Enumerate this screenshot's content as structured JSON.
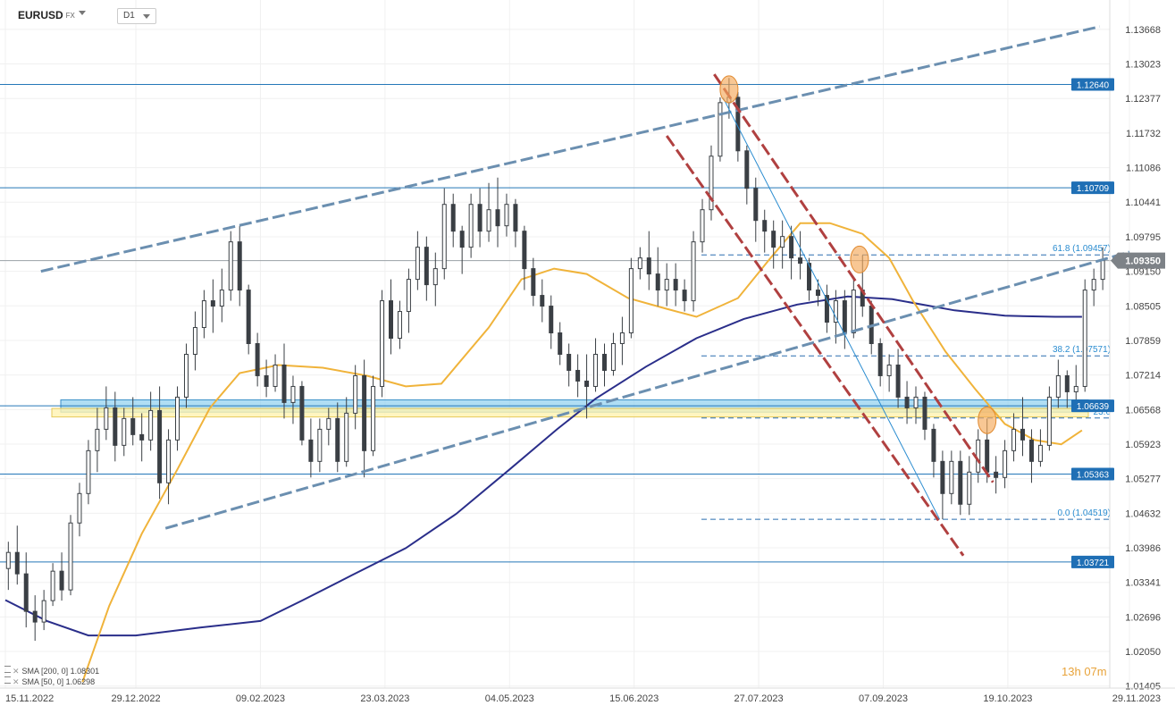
{
  "header": {
    "symbol": "EURUSD",
    "symbol_tag": "FX",
    "timeframe": "D1"
  },
  "legend": [
    {
      "label": "SMA [200, 0]",
      "value": "1.08301",
      "color": "#2a2e8a"
    },
    {
      "label": "SMA [50, 0]",
      "value": "1.06298",
      "color": "#f0b33a"
    }
  ],
  "countdown": {
    "hours": "13h",
    "minutes": "07m"
  },
  "chart_data": {
    "type": "candlestick",
    "instrument": "EURUSD",
    "timeframe": "D1",
    "ylim": [
      1.014,
      1.142
    ],
    "x_range": [
      "2022-11-15",
      "2023-11-29"
    ],
    "y_ticks": [
      "1.13668",
      "1.13023",
      "1.12377",
      "1.11732",
      "1.11086",
      "1.10441",
      "1.09795",
      "1.09150",
      "1.08505",
      "1.07859",
      "1.07214",
      "1.06568",
      "1.05923",
      "1.05277",
      "1.04632",
      "1.03986",
      "1.03341",
      "1.02696",
      "1.02050",
      "1.01405"
    ],
    "x_ticks": [
      {
        "label": "15.11.2022",
        "date": "2022-11-15"
      },
      {
        "label": "29.12.2022",
        "date": "2022-12-29"
      },
      {
        "label": "09.02.2023",
        "date": "2023-02-09"
      },
      {
        "label": "23.03.2023",
        "date": "2023-03-23"
      },
      {
        "label": "04.05.2023",
        "date": "2023-05-04"
      },
      {
        "label": "15.06.2023",
        "date": "2023-06-15"
      },
      {
        "label": "27.07.2023",
        "date": "2023-07-27"
      },
      {
        "label": "07.09.2023",
        "date": "2023-09-07"
      },
      {
        "label": "19.10.2023",
        "date": "2023-10-19"
      },
      {
        "label": "29.11.2023",
        "date": "2023-11-29"
      }
    ],
    "current_price": {
      "label": "1.09350",
      "value": 1.0935
    },
    "horizontal_levels": [
      {
        "label": "1.12640",
        "value": 1.1264
      },
      {
        "label": "1.10709",
        "value": 1.10709
      },
      {
        "label": "1.06639",
        "value": 1.06639
      },
      {
        "label": "1.05363",
        "value": 1.05363
      },
      {
        "label": "1.03721",
        "value": 1.03721
      }
    ],
    "fibonacci": [
      {
        "label": "61.8 (1.09457)",
        "value": 1.09457
      },
      {
        "label": "38.2 (1.07571)",
        "value": 1.07571
      },
      {
        "label": "23.6",
        "value": 1.0641
      },
      {
        "label": "0.0 (1.04519)",
        "value": 1.04519
      }
    ],
    "zones": [
      {
        "name": "support-zone-blue",
        "from": 1.0652,
        "to": 1.0675,
        "color": "#8fd0ef"
      },
      {
        "name": "support-zone-yellow",
        "from": 1.0643,
        "to": 1.0659,
        "color": "#fff3b0"
      }
    ],
    "trendlines": [
      {
        "name": "upper-channel",
        "from": [
          "2022-11-27",
          1.0915
        ],
        "to": [
          "2023-11-19",
          1.1372
        ],
        "color": "#6b8fb0",
        "style": "dashed"
      },
      {
        "name": "lower-channel",
        "from": [
          "2023-01-08",
          1.0435
        ],
        "to": [
          "2023-11-29",
          1.0951
        ],
        "color": "#6b8fb0",
        "style": "dashed"
      },
      {
        "name": "down-channel-top",
        "from": [
          "2023-07-12",
          1.1283
        ],
        "to": [
          "2023-10-14",
          1.0521
        ],
        "color": "#b04040",
        "style": "dashed"
      },
      {
        "name": "down-channel-bottom",
        "from": [
          "2023-06-26",
          1.1168
        ],
        "to": [
          "2023-10-04",
          1.0384
        ],
        "color": "#b04040",
        "style": "dashed"
      },
      {
        "name": "impulse-line",
        "from": [
          "2023-07-15",
          1.1239
        ],
        "to": [
          "2023-09-26",
          1.0452
        ],
        "color": "#2a8cd0",
        "style": "solid"
      }
    ],
    "highlights": [
      {
        "date": "2023-07-17",
        "value": 1.1255
      },
      {
        "date": "2023-08-30",
        "value": 1.0937
      },
      {
        "date": "2023-10-12",
        "value": 1.0637
      }
    ],
    "sma200": [
      [
        "2022-11-15",
        1.0301
      ],
      [
        "2022-11-29",
        1.0262
      ],
      [
        "2022-12-13",
        1.0235
      ],
      [
        "2022-12-29",
        1.0235
      ],
      [
        "2023-01-20",
        1.025
      ],
      [
        "2023-02-09",
        1.0262
      ],
      [
        "2023-02-23",
        1.03
      ],
      [
        "2023-03-12",
        1.0348
      ],
      [
        "2023-03-30",
        1.0398
      ],
      [
        "2023-04-16",
        1.0462
      ],
      [
        "2023-05-04",
        1.0545
      ],
      [
        "2023-05-20",
        1.062
      ],
      [
        "2023-06-02",
        1.0677
      ],
      [
        "2023-06-19",
        1.0737
      ],
      [
        "2023-07-06",
        1.079
      ],
      [
        "2023-07-22",
        1.0826
      ],
      [
        "2023-08-09",
        1.0853
      ],
      [
        "2023-08-26",
        1.0868
      ],
      [
        "2023-09-10",
        1.0863
      ],
      [
        "2023-10-01",
        1.0842
      ],
      [
        "2023-10-18",
        1.0832
      ],
      [
        "2023-11-04",
        1.083
      ],
      [
        "2023-11-13",
        1.083
      ]
    ],
    "sma50": [
      [
        "2022-12-11",
        1.0148
      ],
      [
        "2022-12-20",
        1.029
      ],
      [
        "2022-12-31",
        1.0425
      ],
      [
        "2023-01-12",
        1.0545
      ],
      [
        "2023-01-23",
        1.066
      ],
      [
        "2023-02-02",
        1.0725
      ],
      [
        "2023-02-15",
        1.074
      ],
      [
        "2023-03-02",
        1.0735
      ],
      [
        "2023-03-17",
        1.072
      ],
      [
        "2023-03-30",
        1.07
      ],
      [
        "2023-04-11",
        1.0705
      ],
      [
        "2023-04-27",
        1.081
      ],
      [
        "2023-05-08",
        1.09
      ],
      [
        "2023-05-19",
        1.092
      ],
      [
        "2023-05-30",
        1.091
      ],
      [
        "2023-06-13",
        1.0865
      ],
      [
        "2023-06-26",
        1.0845
      ],
      [
        "2023-07-06",
        1.083
      ],
      [
        "2023-07-20",
        1.0865
      ],
      [
        "2023-07-31",
        1.094
      ],
      [
        "2023-08-10",
        1.1005
      ],
      [
        "2023-08-20",
        1.1005
      ],
      [
        "2023-08-31",
        1.0985
      ],
      [
        "2023-09-09",
        1.094
      ],
      [
        "2023-09-17",
        1.086
      ],
      [
        "2023-09-28",
        1.0765
      ],
      [
        "2023-10-08",
        1.0695
      ],
      [
        "2023-10-18",
        1.063
      ],
      [
        "2023-10-28",
        1.06
      ],
      [
        "2023-11-06",
        1.0592
      ],
      [
        "2023-11-13",
        1.0618
      ]
    ],
    "candles": [
      [
        "2022-11-16",
        1.036,
        1.041,
        1.032,
        1.039
      ],
      [
        "2022-11-19",
        1.039,
        1.044,
        1.033,
        1.035
      ],
      [
        "2022-11-22",
        1.035,
        1.039,
        1.025,
        1.028
      ],
      [
        "2022-11-25",
        1.028,
        1.031,
        1.0225,
        1.026
      ],
      [
        "2022-11-28",
        1.026,
        1.032,
        1.0245,
        1.03
      ],
      [
        "2022-12-01",
        1.03,
        1.037,
        1.029,
        1.0355
      ],
      [
        "2022-12-04",
        1.0355,
        1.039,
        1.03,
        1.032
      ],
      [
        "2022-12-07",
        1.032,
        1.046,
        1.031,
        1.0445
      ],
      [
        "2022-12-10",
        1.0445,
        1.052,
        1.042,
        1.05
      ],
      [
        "2022-12-13",
        1.05,
        1.06,
        1.048,
        1.058
      ],
      [
        "2022-12-16",
        1.058,
        1.066,
        1.054,
        1.062
      ],
      [
        "2022-12-19",
        1.062,
        1.07,
        1.06,
        1.066
      ],
      [
        "2022-12-22",
        1.066,
        1.069,
        1.056,
        1.059
      ],
      [
        "2022-12-25",
        1.059,
        1.066,
        1.057,
        1.064
      ],
      [
        "2022-12-28",
        1.064,
        1.068,
        1.059,
        1.061
      ],
      [
        "2022-12-31",
        1.061,
        1.065,
        1.056,
        1.06
      ],
      [
        "2023-01-03",
        1.06,
        1.069,
        1.058,
        1.0655
      ],
      [
        "2023-01-06",
        1.0655,
        1.07,
        1.049,
        1.052
      ],
      [
        "2023-01-09",
        1.052,
        1.062,
        1.048,
        1.06
      ],
      [
        "2023-01-12",
        1.06,
        1.07,
        1.058,
        1.068
      ],
      [
        "2023-01-15",
        1.068,
        1.078,
        1.066,
        1.076
      ],
      [
        "2023-01-18",
        1.076,
        1.084,
        1.073,
        1.081
      ],
      [
        "2023-01-21",
        1.081,
        1.088,
        1.079,
        1.086
      ],
      [
        "2023-01-24",
        1.086,
        1.09,
        1.08,
        1.085
      ],
      [
        "2023-01-27",
        1.085,
        1.092,
        1.082,
        1.088
      ],
      [
        "2023-01-30",
        1.088,
        1.099,
        1.086,
        1.097
      ],
      [
        "2023-02-02",
        1.097,
        1.1,
        1.085,
        1.088
      ],
      [
        "2023-02-05",
        1.088,
        1.089,
        1.076,
        1.078
      ],
      [
        "2023-02-08",
        1.078,
        1.08,
        1.07,
        1.072
      ],
      [
        "2023-02-11",
        1.072,
        1.075,
        1.068,
        1.07
      ],
      [
        "2023-02-14",
        1.07,
        1.076,
        1.069,
        1.074
      ],
      [
        "2023-02-17",
        1.074,
        1.078,
        1.064,
        1.067
      ],
      [
        "2023-02-20",
        1.067,
        1.072,
        1.063,
        1.07
      ],
      [
        "2023-02-23",
        1.07,
        1.071,
        1.059,
        1.06
      ],
      [
        "2023-02-26",
        1.06,
        1.064,
        1.053,
        1.056
      ],
      [
        "2023-03-01",
        1.056,
        1.064,
        1.054,
        1.062
      ],
      [
        "2023-03-04",
        1.062,
        1.066,
        1.059,
        1.064
      ],
      [
        "2023-03-07",
        1.064,
        1.067,
        1.054,
        1.056
      ],
      [
        "2023-03-10",
        1.056,
        1.068,
        1.055,
        1.065
      ],
      [
        "2023-03-13",
        1.065,
        1.074,
        1.062,
        1.072
      ],
      [
        "2023-03-16",
        1.072,
        1.075,
        1.053,
        1.058
      ],
      [
        "2023-03-19",
        1.058,
        1.072,
        1.057,
        1.07
      ],
      [
        "2023-03-22",
        1.07,
        1.088,
        1.068,
        1.086
      ],
      [
        "2023-03-25",
        1.086,
        1.09,
        1.076,
        1.079
      ],
      [
        "2023-03-28",
        1.079,
        1.086,
        1.077,
        1.084
      ],
      [
        "2023-03-31",
        1.084,
        1.092,
        1.08,
        1.09
      ],
      [
        "2023-04-03",
        1.09,
        1.099,
        1.088,
        1.096
      ],
      [
        "2023-04-06",
        1.096,
        1.098,
        1.086,
        1.089
      ],
      [
        "2023-04-09",
        1.089,
        1.095,
        1.085,
        1.092
      ],
      [
        "2023-04-12",
        1.092,
        1.107,
        1.09,
        1.104
      ],
      [
        "2023-04-15",
        1.104,
        1.106,
        1.096,
        1.099
      ],
      [
        "2023-04-18",
        1.099,
        1.1,
        1.091,
        1.096
      ],
      [
        "2023-04-21",
        1.096,
        1.106,
        1.094,
        1.104
      ],
      [
        "2023-04-24",
        1.104,
        1.107,
        1.096,
        1.099
      ],
      [
        "2023-04-27",
        1.099,
        1.108,
        1.097,
        1.103
      ],
      [
        "2023-04-30",
        1.103,
        1.109,
        1.096,
        1.1
      ],
      [
        "2023-05-03",
        1.1,
        1.106,
        1.098,
        1.104
      ],
      [
        "2023-05-06",
        1.104,
        1.105,
        1.096,
        1.099
      ],
      [
        "2023-05-09",
        1.099,
        1.1,
        1.088,
        1.092
      ],
      [
        "2023-05-12",
        1.092,
        1.094,
        1.085,
        1.087
      ],
      [
        "2023-05-15",
        1.087,
        1.09,
        1.082,
        1.085
      ],
      [
        "2023-05-18",
        1.085,
        1.087,
        1.077,
        1.08
      ],
      [
        "2023-05-21",
        1.08,
        1.082,
        1.074,
        1.076
      ],
      [
        "2023-05-24",
        1.076,
        1.078,
        1.07,
        1.073
      ],
      [
        "2023-05-27",
        1.073,
        1.076,
        1.068,
        1.071
      ],
      [
        "2023-05-30",
        1.071,
        1.076,
        1.064,
        1.07
      ],
      [
        "2023-06-02",
        1.07,
        1.079,
        1.069,
        1.076
      ],
      [
        "2023-06-05",
        1.076,
        1.078,
        1.07,
        1.073
      ],
      [
        "2023-06-08",
        1.073,
        1.08,
        1.072,
        1.078
      ],
      [
        "2023-06-11",
        1.078,
        1.083,
        1.074,
        1.08
      ],
      [
        "2023-06-14",
        1.08,
        1.094,
        1.079,
        1.092
      ],
      [
        "2023-06-17",
        1.092,
        1.096,
        1.09,
        1.094
      ],
      [
        "2023-06-20",
        1.094,
        1.099,
        1.088,
        1.091
      ],
      [
        "2023-06-23",
        1.091,
        1.096,
        1.085,
        1.088
      ],
      [
        "2023-06-26",
        1.088,
        1.093,
        1.085,
        1.09
      ],
      [
        "2023-06-29",
        1.09,
        1.093,
        1.085,
        1.088
      ],
      [
        "2023-07-02",
        1.088,
        1.09,
        1.084,
        1.086
      ],
      [
        "2023-07-05",
        1.086,
        1.099,
        1.084,
        1.097
      ],
      [
        "2023-07-08",
        1.097,
        1.105,
        1.095,
        1.103
      ],
      [
        "2023-07-11",
        1.103,
        1.115,
        1.101,
        1.113
      ],
      [
        "2023-07-14",
        1.113,
        1.124,
        1.112,
        1.123
      ],
      [
        "2023-07-17",
        1.123,
        1.1276,
        1.12,
        1.124
      ],
      [
        "2023-07-20",
        1.124,
        1.125,
        1.112,
        1.114
      ],
      [
        "2023-07-23",
        1.114,
        1.115,
        1.104,
        1.107
      ],
      [
        "2023-07-26",
        1.107,
        1.109,
        1.097,
        1.101
      ],
      [
        "2023-07-29",
        1.101,
        1.103,
        1.095,
        1.099
      ],
      [
        "2023-08-01",
        1.099,
        1.101,
        1.092,
        1.096
      ],
      [
        "2023-08-04",
        1.096,
        1.101,
        1.092,
        1.098
      ],
      [
        "2023-08-07",
        1.098,
        1.1,
        1.09,
        1.094
      ],
      [
        "2023-08-10",
        1.094,
        1.099,
        1.09,
        1.093
      ],
      [
        "2023-08-13",
        1.093,
        1.094,
        1.086,
        1.088
      ],
      [
        "2023-08-16",
        1.088,
        1.09,
        1.085,
        1.087
      ],
      [
        "2023-08-19",
        1.087,
        1.089,
        1.08,
        1.082
      ],
      [
        "2023-08-22",
        1.082,
        1.088,
        1.078,
        1.086
      ],
      [
        "2023-08-25",
        1.086,
        1.088,
        1.077,
        1.08
      ],
      [
        "2023-08-28",
        1.08,
        1.09,
        1.079,
        1.088
      ],
      [
        "2023-08-31",
        1.088,
        1.0945,
        1.083,
        1.085
      ],
      [
        "2023-09-03",
        1.085,
        1.086,
        1.076,
        1.078
      ],
      [
        "2023-09-06",
        1.078,
        1.079,
        1.07,
        1.072
      ],
      [
        "2023-09-09",
        1.072,
        1.076,
        1.069,
        1.074
      ],
      [
        "2023-09-12",
        1.074,
        1.077,
        1.066,
        1.068
      ],
      [
        "2023-09-15",
        1.068,
        1.071,
        1.063,
        1.066
      ],
      [
        "2023-09-18",
        1.066,
        1.07,
        1.063,
        1.068
      ],
      [
        "2023-09-21",
        1.068,
        1.069,
        1.06,
        1.062
      ],
      [
        "2023-09-24",
        1.062,
        1.063,
        1.053,
        1.056
      ],
      [
        "2023-09-27",
        1.056,
        1.058,
        1.0452,
        1.05
      ],
      [
        "2023-09-30",
        1.05,
        1.058,
        1.048,
        1.056
      ],
      [
        "2023-10-03",
        1.056,
        1.058,
        1.046,
        1.048
      ],
      [
        "2023-10-06",
        1.048,
        1.057,
        1.046,
        1.054
      ],
      [
        "2023-10-09",
        1.054,
        1.062,
        1.052,
        1.06
      ],
      [
        "2023-10-12",
        1.06,
        1.064,
        1.052,
        1.054
      ],
      [
        "2023-10-15",
        1.054,
        1.057,
        1.05,
        1.053
      ],
      [
        "2023-10-18",
        1.053,
        1.06,
        1.051,
        1.058
      ],
      [
        "2023-10-21",
        1.058,
        1.065,
        1.056,
        1.062
      ],
      [
        "2023-10-24",
        1.062,
        1.068,
        1.057,
        1.06
      ],
      [
        "2023-10-27",
        1.06,
        1.062,
        1.052,
        1.056
      ],
      [
        "2023-10-30",
        1.056,
        1.062,
        1.055,
        1.059
      ],
      [
        "2023-11-02",
        1.059,
        1.07,
        1.058,
        1.068
      ],
      [
        "2023-11-05",
        1.068,
        1.075,
        1.066,
        1.072
      ],
      [
        "2023-11-08",
        1.072,
        1.073,
        1.066,
        1.069
      ],
      [
        "2023-11-11",
        1.069,
        1.074,
        1.066,
        1.07
      ],
      [
        "2023-11-14",
        1.07,
        1.09,
        1.069,
        1.088
      ],
      [
        "2023-11-17",
        1.088,
        1.092,
        1.085,
        1.09
      ],
      [
        "2023-11-20",
        1.09,
        1.096,
        1.088,
        1.0935
      ]
    ]
  }
}
